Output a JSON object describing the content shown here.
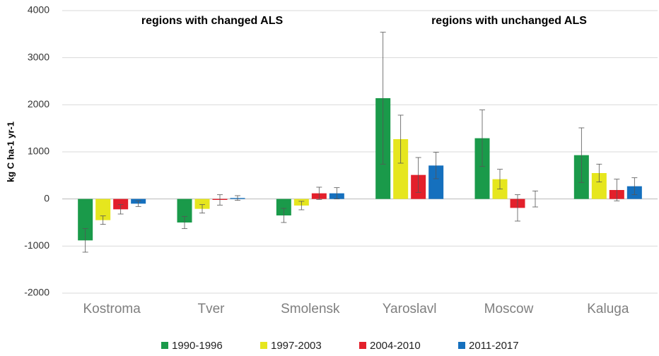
{
  "chart_data": {
    "type": "bar",
    "annotations": [
      "regions with changed ALS",
      "regions with unchanged ALS"
    ],
    "y_label": "kg C ha-1 yr-1",
    "categories": [
      "Kostroma",
      "Tver",
      "Smolensk",
      "Yaroslavl",
      "Moscow",
      "Kaluga"
    ],
    "series": [
      {
        "name": "1990-1996",
        "color": "#1a9a4a",
        "values": [
          -880,
          -500,
          -350,
          2140,
          1290,
          930
        ],
        "errors": [
          250,
          130,
          150,
          1400,
          600,
          580
        ]
      },
      {
        "name": "1997-2003",
        "color": "#e6e61e",
        "values": [
          -450,
          -210,
          -140,
          1270,
          420,
          550
        ],
        "errors": [
          90,
          90,
          90,
          510,
          210,
          190
        ]
      },
      {
        "name": "2004-2010",
        "color": "#e3202b",
        "values": [
          -220,
          -20,
          120,
          510,
          -190,
          190
        ],
        "errors": [
          100,
          110,
          130,
          370,
          280,
          230
        ]
      },
      {
        "name": "2011-2017",
        "color": "#1570be",
        "values": [
          -100,
          20,
          120,
          710,
          0,
          270
        ],
        "errors": [
          60,
          50,
          120,
          280,
          170,
          180
        ]
      }
    ],
    "ylim": [
      -2000,
      4000
    ],
    "yticks": [
      -2000,
      -1000,
      0,
      1000,
      2000,
      3000,
      4000
    ],
    "grid": true
  }
}
